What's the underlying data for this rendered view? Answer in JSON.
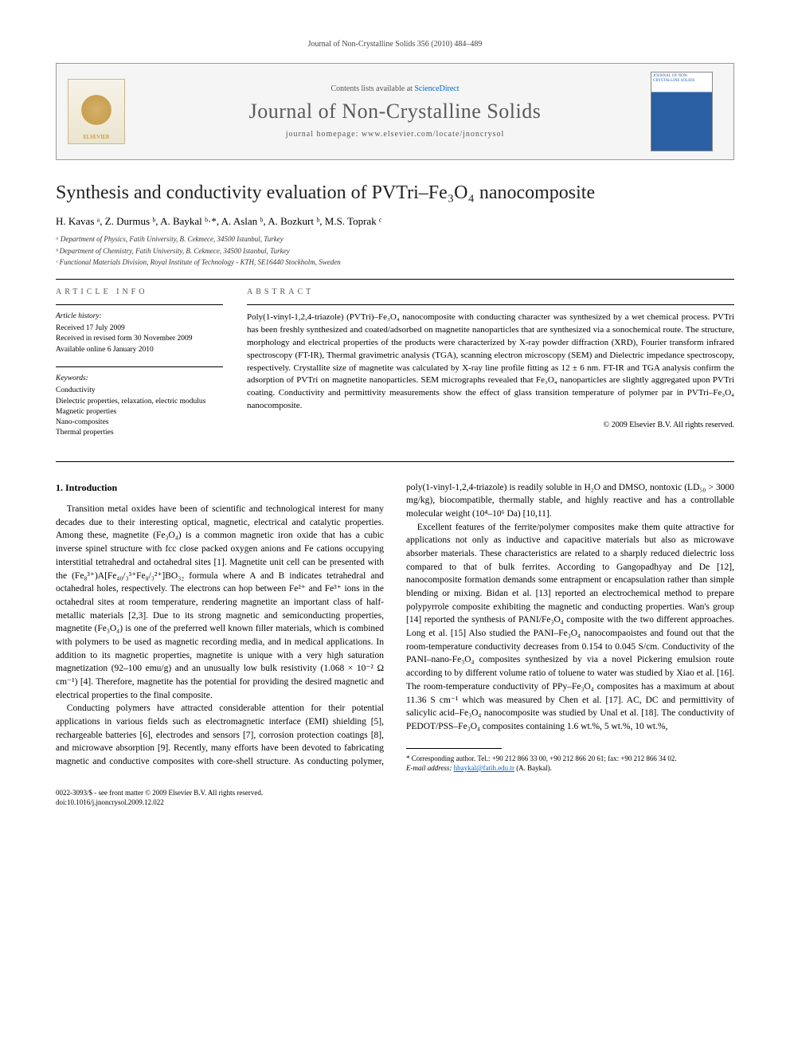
{
  "header": {
    "running_head": "Journal of Non-Crystalline Solids 356 (2010) 484–489"
  },
  "banner": {
    "contents_prefix": "Contents lists available at ",
    "contents_link": "ScienceDirect",
    "journal_name": "Journal of Non-Crystalline Solids",
    "homepage_prefix": "journal homepage: ",
    "homepage_url": "www.elsevier.com/locate/jnoncrysol",
    "publisher_logo_text": "ELSEVIER",
    "cover_title": "JOURNAL OF NON-CRYSTALLINE SOLIDS"
  },
  "article": {
    "title_html": "Synthesis and conductivity evaluation of PVTri–Fe₃O₄ nanocomposite",
    "authors_html": "H. Kavas ᵃ, Z. Durmus ᵇ, A. Baykal ᵇ·*, A. Aslan ᵇ, A. Bozkurt ᵇ, M.S. Toprak ᶜ",
    "affiliations": [
      "ᵃ Department of Physics, Fatih University, B. Cekmece, 34500 Istanbul, Turkey",
      "ᵇ Department of Chemistry, Fatih University, B. Cekmece, 34500 Istanbul, Turkey",
      "ᶜ Functional Materials Division, Royal Institute of Technology - KTH, SE16440 Stockholm, Sweden"
    ]
  },
  "meta": {
    "info_label": "ARTICLE INFO",
    "abstract_label": "ABSTRACT",
    "history_hdr": "Article history:",
    "history": [
      "Received 17 July 2009",
      "Received in revised form 30 November 2009",
      "Available online 6 January 2010"
    ],
    "keywords_hdr": "Keywords:",
    "keywords": [
      "Conductivity",
      "Dielectric properties, relaxation, electric modulus",
      "Magnetic properties",
      "Nano-composites",
      "Thermal properties"
    ]
  },
  "abstract": {
    "text": "Poly(1-vinyl-1,2,4-triazole) (PVTri)–Fe₃O₄ nanocomposite with conducting character was synthesized by a wet chemical process. PVTri has been freshly synthesized and coated/adsorbed on magnetite nanoparticles that are synthesized via a sonochemical route. The structure, morphology and electrical properties of the products were characterized by X-ray powder diffraction (XRD), Fourier transform infrared spectroscopy (FT-IR), Thermal gravimetric analysis (TGA), scanning electron microscopy (SEM) and Dielectric impedance spectroscopy, respectively. Crystallite size of magnetite was calculated by X-ray line profile fitting as 12 ± 6 nm. FT-IR and TGA analysis confirm the adsorption of PVTri on magnetite nanoparticles. SEM micrographs revealed that Fe₃O₄ nanoparticles are slightly aggregated upon PVTri coating. Conductivity and permittivity measurements show the effect of glass transition temperature of polymer par in PVTri–Fe₃O₄ nanocomposite.",
    "copyright": "© 2009 Elsevier B.V. All rights reserved."
  },
  "body": {
    "section_heading": "1. Introduction",
    "p1": "Transition metal oxides have been of scientific and technological interest for many decades due to their interesting optical, magnetic, electrical and catalytic properties. Among these, magnetite (Fe₃O₄) is a common magnetic iron oxide that has a cubic inverse spinel structure with fcc close packed oxygen anions and Fe cations occupying interstitial tetrahedral and octahedral sites [1]. Magnetite unit cell can be presented with the (Fe₈³⁺)A[Fe₄₀/₃³⁺Fe₈/₃²⁺]BO₃₂ formula where A and B indicates tetrahedral and octahedral holes, respectively. The electrons can hop between Fe²⁺ and Fe³⁺ ions in the octahedral sites at room temperature, rendering magnetite an important class of half-metallic materials [2,3]. Due to its strong magnetic and semiconducting properties, magnetite (Fe₃O₄) is one of the preferred well known filler materials, which is combined with polymers to be used as magnetic recording media, and in medical applications. In addition to its magnetic properties, magnetite is unique with a very high saturation magnetization (92–100 emu/g) and an unusually low bulk resistivity (1.068 × 10⁻² Ω cm⁻¹) [4]. Therefore, magnetite has the potential for providing the desired magnetic and electrical properties to the final composite.",
    "p2": "Conducting polymers have attracted considerable attention for their potential applications in various fields such as electromagnetic interface (EMI) shielding [5], rechargeable batteries [6], electrodes and sensors [7], corrosion protection coatings [8], and microwave absorption [9]. Recently, many efforts have been devoted to fabricating magnetic and conductive composites with core-shell structure. As conducting polymer, poly(1-vinyl-1,2,4-triazole) is readily soluble in H₂O and DMSO, nontoxic (LD₅₀ > 3000 mg/kg), biocompatible, thermally stable, and highly reactive and has a controllable molecular weight (10⁴–10⁶ Da) [10,11].",
    "p3": "Excellent features of the ferrite/polymer composites make them quite attractive for applications not only as inductive and capacitive materials but also as microwave absorber materials. These characteristics are related to a sharply reduced dielectric loss compared to that of bulk ferrites. According to Gangopadhyay and De [12], nanocomposite formation demands some entrapment or encapsulation rather than simple blending or mixing. Bidan et al. [13] reported an electrochemical method to prepare polypyrrole composite exhibiting the magnetic and conducting properties. Wan's group [14] reported the synthesis of PANI/Fe₃O₄ composite with the two different approaches. Long et al. [15] Also studied the PANI–Fe₃O₄ nanocompaoistes and found out that the room-temperature conductivity decreases from 0.154 to 0.045 S/cm. Conductivity of the PANI–nano-Fe₃O₄ composites synthesized by via a novel Pickering emulsion route according to by different volume ratio of toluene to water was studied by Xiao et al. [16]. The room-temperature conductivity of PPy–Fe₃O₄ composites has a maximum at about 11.36 S cm⁻¹ which was measured by Chen et al. [17]. AC, DC and permittivity of salicylic acid–Fe₃O₄ nanocomposite was studied by Unal et al. [18]. The conductivity of PEDOT/PSS–Fe₃O₄ composites containing 1.6 wt.%, 5 wt.%, 10 wt.%,"
  },
  "footnote": {
    "corr": "* Corresponding author. Tel.: +90 212 866 33 00, +90 212 866 20 61; fax: +90 212 866 34 02.",
    "email_label": "E-mail address:",
    "email": "hbaykal@fatih.edu.tr",
    "email_name": "(A. Baykal)."
  },
  "footer": {
    "issn_line": "0022-3093/$ - see front matter © 2009 Elsevier B.V. All rights reserved.",
    "doi_line": "doi:10.1016/j.jnoncrysol.2009.12.022"
  },
  "colors": {
    "link": "#0066cc",
    "text": "#000000",
    "muted": "#555555",
    "banner_bg": "#f5f5f5",
    "journal_title": "#5a5a5a"
  }
}
